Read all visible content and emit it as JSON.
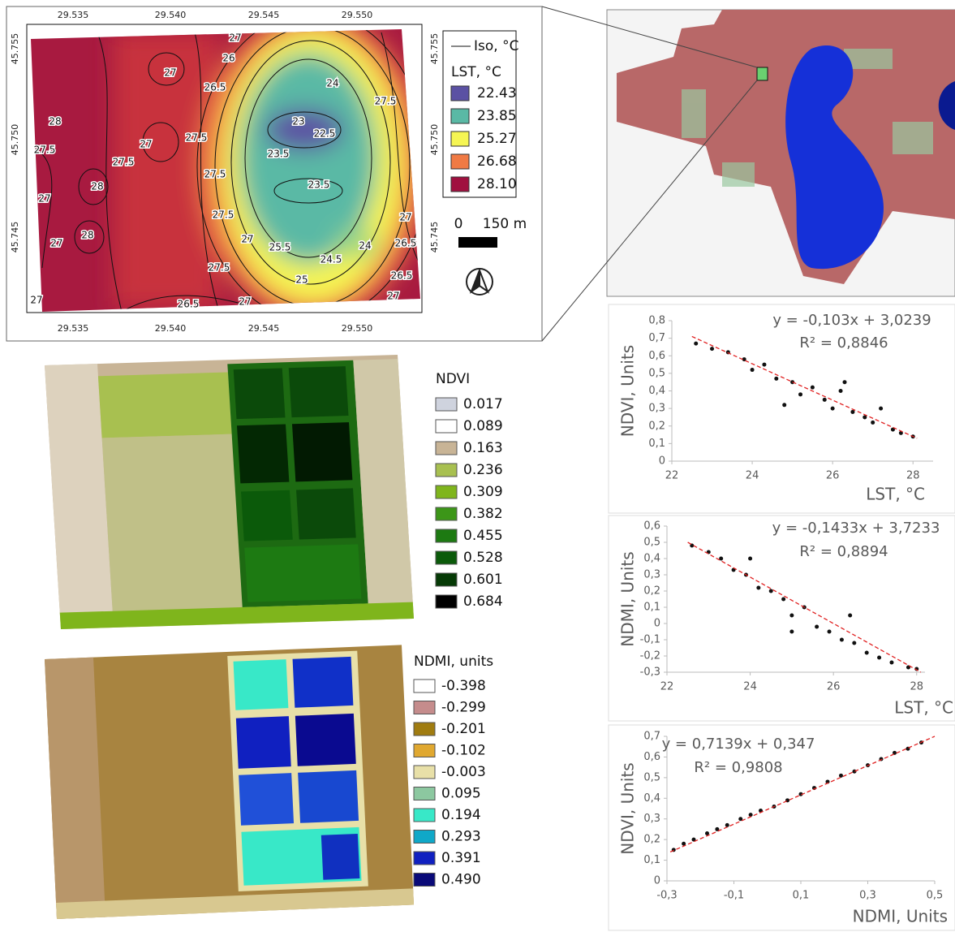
{
  "lst_map": {
    "x_ticks": [
      "29.535",
      "29.540",
      "29.545",
      "29.550"
    ],
    "y_ticks": [
      "45.755",
      "45.750",
      "45.745"
    ],
    "iso_label": "Iso, °C",
    "legend_title": "LST, °C",
    "legend": [
      {
        "label": "22.43",
        "color": "#5b51a3"
      },
      {
        "label": "23.85",
        "color": "#5ab9a5"
      },
      {
        "label": "25.27",
        "color": "#f5f553"
      },
      {
        "label": "26.68",
        "color": "#f07a44"
      },
      {
        "label": "28.10",
        "color": "#a0103f"
      }
    ],
    "scale_labels": [
      "0",
      "150 m"
    ],
    "contour_labels": [
      "27",
      "26",
      "27",
      "26.5",
      "24",
      "27.5",
      "28",
      "27",
      "27.5",
      "23",
      "22.5",
      "27.5",
      "27.5",
      "23.5",
      "27.5",
      "28",
      "23.5",
      "27",
      "27.5",
      "27",
      "28",
      "27",
      "24",
      "26.5",
      "27",
      "25.5",
      "24.5",
      "27.5",
      "25",
      "26.5",
      "27",
      "26.5",
      "27",
      "27"
    ]
  },
  "ndvi_map": {
    "legend_title": "NDVI",
    "legend": [
      {
        "label": "0.017",
        "color": "#cfd3de"
      },
      {
        "label": "0.089",
        "color": "#ffffff"
      },
      {
        "label": "0.163",
        "color": "#c8b496"
      },
      {
        "label": "0.236",
        "color": "#a8c050"
      },
      {
        "label": "0.309",
        "color": "#7fb51c"
      },
      {
        "label": "0.382",
        "color": "#3c9618"
      },
      {
        "label": "0.455",
        "color": "#1d7a12"
      },
      {
        "label": "0.528",
        "color": "#0b5a0a"
      },
      {
        "label": "0.601",
        "color": "#063a06"
      },
      {
        "label": "0.684",
        "color": "#000000"
      }
    ]
  },
  "ndmi_map": {
    "legend_title": "NDMI, units",
    "legend": [
      {
        "label": "-0.398",
        "color": "#ffffff"
      },
      {
        "label": "-0.299",
        "color": "#c58c8c"
      },
      {
        "label": "-0.201",
        "color": "#a07c10"
      },
      {
        "label": "-0.102",
        "color": "#e0a830"
      },
      {
        "label": "-0.003",
        "color": "#e8e0a8"
      },
      {
        "label": "0.095",
        "color": "#8cc8a0"
      },
      {
        "label": "0.194",
        "color": "#38e8c8"
      },
      {
        "label": "0.293",
        "color": "#10a8c8"
      },
      {
        "label": "0.391",
        "color": "#1020c0"
      },
      {
        "label": "0.490",
        "color": "#0a0a78"
      }
    ]
  },
  "chart_data": [
    {
      "type": "scatter",
      "x_label": "LST, °C",
      "y_label": "NDVI, Units",
      "equation": "y = -0,103x + 3,0239",
      "r2": "R² = 0,8846",
      "xlim": [
        22,
        28.5
      ],
      "ylim": [
        0,
        0.8
      ],
      "xticks": [
        22,
        24,
        26,
        28
      ],
      "yticks": [
        0,
        {
          "value": 0.1,
          "label": "0,1"
        },
        {
          "value": 0.2,
          "label": "0,2"
        },
        {
          "value": 0.3,
          "label": "0,3"
        },
        {
          "value": 0.4,
          "label": "0,4"
        },
        {
          "value": 0.5,
          "label": "0,5"
        },
        {
          "value": 0.6,
          "label": "0,6"
        },
        {
          "value": 0.7,
          "label": "0,7"
        },
        {
          "value": 0.8,
          "label": "0,8"
        }
      ],
      "color": "#111111",
      "x": [
        22.6,
        23.0,
        23.4,
        23.8,
        24.0,
        24.3,
        24.6,
        25.0,
        25.2,
        25.5,
        25.8,
        26.0,
        26.2,
        26.5,
        26.8,
        27.0,
        27.2,
        27.5,
        27.7,
        28.0,
        24.8,
        26.3
      ],
      "values": [
        0.67,
        0.64,
        0.62,
        0.58,
        0.52,
        0.55,
        0.47,
        0.45,
        0.38,
        0.42,
        0.35,
        0.3,
        0.4,
        0.28,
        0.25,
        0.22,
        0.3,
        0.18,
        0.16,
        0.14,
        0.32,
        0.45
      ],
      "trendline": {
        "color": "#e02020",
        "x": [
          22.5,
          28.1
        ],
        "values": [
          0.71,
          0.13
        ]
      }
    },
    {
      "type": "scatter",
      "x_label": "LST, °C",
      "y_label": "NDMI, Units",
      "equation": "y = -0,1433x + 3,7233",
      "r2": "R² = 0,8894",
      "xlim": [
        22,
        28.2
      ],
      "ylim": [
        -0.3,
        0.6
      ],
      "xticks": [
        22,
        24,
        26,
        28
      ],
      "yticks": [
        {
          "value": -0.3,
          "label": "-0,3"
        },
        {
          "value": -0.2,
          "label": "-0,2"
        },
        {
          "value": -0.1,
          "label": "-0,1"
        },
        0,
        {
          "value": 0.1,
          "label": "0,1"
        },
        {
          "value": 0.2,
          "label": "0,2"
        },
        {
          "value": 0.3,
          "label": "0,3"
        },
        {
          "value": 0.4,
          "label": "0,4"
        },
        {
          "value": 0.5,
          "label": "0,5"
        },
        {
          "value": 0.6,
          "label": "0,6"
        }
      ],
      "color": "#111111",
      "x": [
        22.6,
        23.0,
        23.3,
        23.6,
        23.9,
        24.2,
        24.5,
        24.8,
        25.0,
        25.3,
        25.6,
        25.9,
        26.2,
        26.5,
        26.8,
        27.1,
        27.4,
        27.8,
        28.0,
        24.0,
        25.0,
        26.4
      ],
      "values": [
        0.48,
        0.44,
        0.4,
        0.33,
        0.3,
        0.22,
        0.2,
        0.15,
        0.05,
        0.1,
        -0.02,
        -0.05,
        -0.1,
        -0.12,
        -0.18,
        -0.21,
        -0.24,
        -0.27,
        -0.28,
        0.4,
        -0.05,
        0.05
      ],
      "trendline": {
        "color": "#e02020",
        "x": [
          22.5,
          28.1
        ],
        "values": [
          0.5,
          -0.3
        ]
      }
    },
    {
      "type": "scatter",
      "x_label": "NDMI, Units",
      "y_label": "NDVI, Units",
      "equation": "y = 0,7139x + 0,347",
      "r2": "R² = 0,9808",
      "xlim": [
        -0.3,
        0.5
      ],
      "ylim": [
        0,
        0.7
      ],
      "xticks": [
        {
          "value": -0.3,
          "label": "-0,3"
        },
        {
          "value": -0.1,
          "label": "-0,1"
        },
        {
          "value": 0.1,
          "label": "0,1"
        },
        {
          "value": 0.3,
          "label": "0,3"
        },
        {
          "value": 0.5,
          "label": "0,5"
        }
      ],
      "yticks": [
        0,
        {
          "value": 0.1,
          "label": "0,1"
        },
        {
          "value": 0.2,
          "label": "0,2"
        },
        {
          "value": 0.3,
          "label": "0,3"
        },
        {
          "value": 0.4,
          "label": "0,4"
        },
        {
          "value": 0.5,
          "label": "0,5"
        },
        {
          "value": 0.6,
          "label": "0,6"
        },
        {
          "value": 0.7,
          "label": "0,7"
        }
      ],
      "color": "#111111",
      "x": [
        -0.28,
        -0.25,
        -0.22,
        -0.18,
        -0.15,
        -0.12,
        -0.08,
        -0.05,
        -0.02,
        0.02,
        0.06,
        0.1,
        0.14,
        0.18,
        0.22,
        0.26,
        0.3,
        0.34,
        0.38,
        0.42,
        0.46
      ],
      "values": [
        0.15,
        0.18,
        0.2,
        0.23,
        0.25,
        0.27,
        0.3,
        0.32,
        0.34,
        0.36,
        0.39,
        0.42,
        0.45,
        0.48,
        0.51,
        0.53,
        0.56,
        0.59,
        0.62,
        0.64,
        0.67
      ],
      "trendline": {
        "color": "#e02020",
        "x": [
          -0.29,
          0.5
        ],
        "values": [
          0.14,
          0.7
        ]
      }
    }
  ]
}
